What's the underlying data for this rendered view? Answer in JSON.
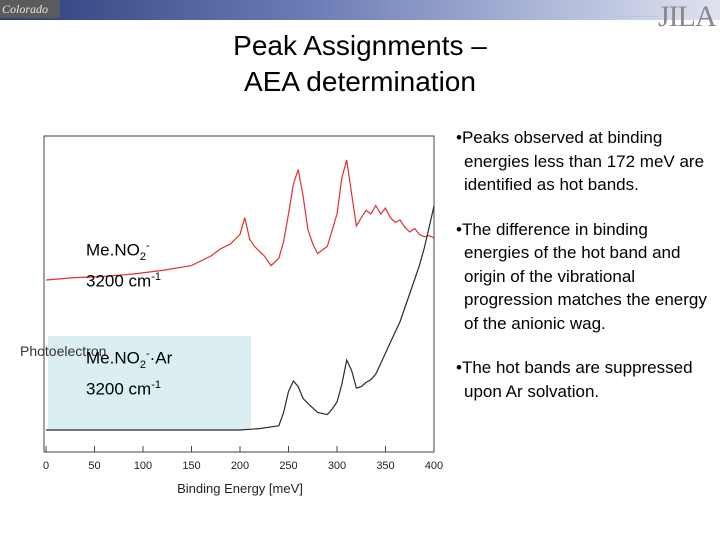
{
  "title": {
    "line1": "Peak Assignments –",
    "line2": "AEA determination"
  },
  "header": {
    "left_logo_text": "Colorado",
    "right_logo_text": "JILA"
  },
  "chart_data": {
    "type": "line",
    "xlabel": "Binding Energy [meV]",
    "x_ticks": [
      0,
      50,
      100,
      150,
      200,
      250,
      300,
      350,
      400
    ],
    "xlim": [
      0,
      400
    ],
    "series": [
      {
        "name": "MeNO2- 3200 cm-1",
        "color": "#e03030",
        "x": [
          0,
          30,
          60,
          90,
          120,
          150,
          170,
          180,
          190,
          200,
          205,
          210,
          215,
          225,
          232,
          240,
          245,
          250,
          255,
          260,
          265,
          270,
          275,
          280,
          285,
          290,
          300,
          305,
          310,
          315,
          320,
          325,
          330,
          335,
          340,
          345,
          350,
          355,
          360,
          365,
          370,
          375,
          380,
          385,
          390,
          395,
          400
        ],
        "y": [
          0.0,
          0.02,
          0.03,
          0.05,
          0.08,
          0.12,
          0.2,
          0.26,
          0.3,
          0.38,
          0.52,
          0.34,
          0.28,
          0.2,
          0.12,
          0.18,
          0.32,
          0.55,
          0.8,
          0.92,
          0.7,
          0.42,
          0.3,
          0.22,
          0.25,
          0.28,
          0.55,
          0.85,
          1.0,
          0.72,
          0.45,
          0.52,
          0.58,
          0.55,
          0.62,
          0.55,
          0.6,
          0.52,
          0.48,
          0.5,
          0.44,
          0.4,
          0.43,
          0.38,
          0.36,
          0.37,
          0.35
        ]
      },
      {
        "name": "MeNO2-·Ar 3200 cm-1",
        "color": "#2a2a2a",
        "x": [
          0,
          30,
          60,
          90,
          120,
          150,
          180,
          200,
          210,
          220,
          230,
          240,
          245,
          250,
          255,
          260,
          265,
          270,
          280,
          290,
          295,
          300,
          305,
          310,
          315,
          320,
          325,
          330,
          335,
          340,
          345,
          350,
          355,
          360,
          365,
          370,
          375,
          380,
          385,
          390,
          395,
          400
        ],
        "y": [
          0.0,
          0.0,
          0.0,
          0.0,
          0.0,
          0.0,
          0.0,
          0.0,
          0.01,
          0.02,
          0.04,
          0.06,
          0.25,
          0.55,
          0.7,
          0.62,
          0.45,
          0.38,
          0.25,
          0.22,
          0.3,
          0.4,
          0.65,
          1.0,
          0.85,
          0.6,
          0.62,
          0.68,
          0.72,
          0.8,
          0.95,
          1.1,
          1.25,
          1.4,
          1.55,
          1.75,
          1.95,
          2.15,
          2.35,
          2.6,
          2.9,
          3.2
        ]
      }
    ]
  },
  "labels": {
    "upper": {
      "species": "Me.NO",
      "sub": "2",
      "sup": "-",
      "energy": "3200 cm",
      "energy_sup": "-1"
    },
    "lower": {
      "species": "Me.NO",
      "sub": "2",
      "sup": "-",
      "tail": "·Ar",
      "energy": "3200 cm",
      "energy_sup": "-1"
    },
    "y_axis_clip": "Photoelectron"
  },
  "bullets": [
    "•Peaks observed at binding energies less than 172 meV are identified as hot bands.",
    "•The difference in binding energies of the hot band and origin of the vibrational progression matches the energy of the anionic wag.",
    "•The hot bands are suppressed upon Ar solvation."
  ],
  "colors": {
    "highlight_box": "#dbeef2",
    "upper_trace": "#e03030",
    "lower_trace": "#2a2a2a"
  }
}
